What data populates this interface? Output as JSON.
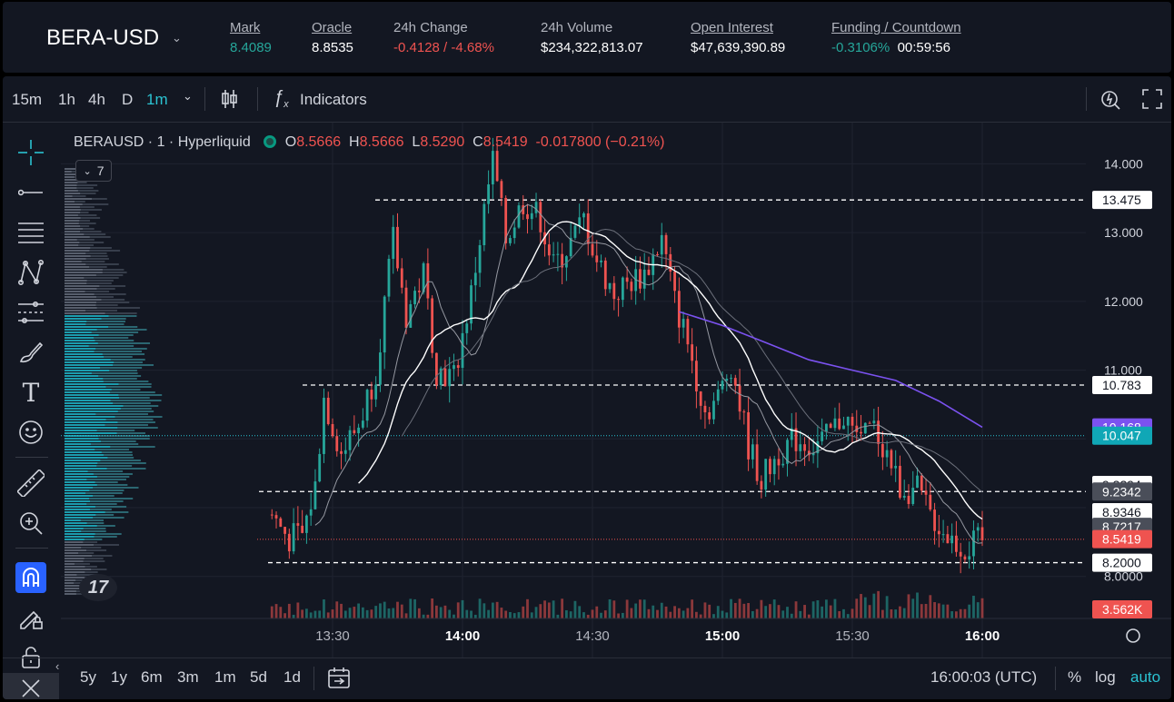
{
  "header": {
    "pair": "BERA-USD",
    "stats": [
      {
        "label": "Mark",
        "value": "8.4089",
        "underline": true,
        "tone": "green"
      },
      {
        "label": "Oracle",
        "value": "8.8535",
        "underline": true,
        "tone": "white"
      },
      {
        "label": "24h Change",
        "value": "-0.4128 / -4.68%",
        "underline": false,
        "tone": "red"
      },
      {
        "label": "24h Volume",
        "value": "$234,322,813.07",
        "underline": false,
        "tone": "white"
      },
      {
        "label": "Open Interest",
        "value": "$47,639,390.89",
        "underline": true,
        "tone": "white"
      },
      {
        "label": "Funding / Countdown",
        "value": "-0.3106%",
        "value2": "00:59:56",
        "underline": true,
        "tone": "green"
      }
    ]
  },
  "toolbar": {
    "intervals": [
      "15m",
      "1h",
      "4h",
      "D",
      "1m"
    ],
    "active_interval": "1m",
    "indicators_label": "Indicators"
  },
  "legend": {
    "symbol": "BERAUSD · 1 · Hyperliquid",
    "o_label": "O",
    "o": "8.5666",
    "h_label": "H",
    "h": "8.5666",
    "l_label": "L",
    "l": "8.5290",
    "c_label": "C",
    "c": "8.5419",
    "change": "-0.017800 (−0.21%)",
    "indicator_count": "7"
  },
  "bottom": {
    "ranges": [
      "5y",
      "1y",
      "6m",
      "3m",
      "1m",
      "5d",
      "1d"
    ],
    "clock": "16:00:03 (UTC)",
    "opts": [
      "%",
      "log",
      "auto"
    ]
  },
  "colors": {
    "up": "#26a69a",
    "down": "#ef5350",
    "bg": "#131722",
    "accent": "#2962ff",
    "ma_long": "#7b52f0"
  },
  "chart_data": {
    "type": "candlestick",
    "y_ticks": [
      "14.000",
      "13.000",
      "12.000",
      "11.000",
      "8.0000"
    ],
    "y_range": [
      7.6,
      14.6
    ],
    "x_ticks": [
      "13:30",
      "14:00",
      "14:30",
      "15:00",
      "15:30",
      "16:00"
    ],
    "time_range": [
      "13:16",
      "16:00"
    ],
    "price_labels": [
      {
        "value": "13.475",
        "price": 13.475,
        "style": "white"
      },
      {
        "value": "10.783",
        "price": 10.783,
        "style": "white"
      },
      {
        "value": "10.168",
        "price": 10.168,
        "style": "purple"
      },
      {
        "value": "10.047",
        "price": 10.047,
        "style": "cyan"
      },
      {
        "value": "9.3294",
        "price": 9.3294,
        "style": "white"
      },
      {
        "value": "9.2342",
        "price": 9.2342,
        "style": "gray"
      },
      {
        "value": "8.9346",
        "price": 8.9346,
        "style": "white"
      },
      {
        "value": "8.7217",
        "price": 8.7217,
        "style": "gray"
      },
      {
        "value": "8.5419",
        "price": 8.5419,
        "style": "red"
      },
      {
        "value": "8.2000",
        "price": 8.2,
        "style": "white"
      }
    ],
    "volume_label": "3.562K",
    "horizontal_levels": [
      13.475,
      10.783,
      9.2342,
      8.2
    ],
    "close_path": [
      [
        "13:16",
        8.9
      ],
      [
        "13:20",
        8.55
      ],
      [
        "13:23",
        8.6
      ],
      [
        "13:26",
        9.3
      ],
      [
        "13:28",
        10.6
      ],
      [
        "13:32",
        9.8
      ],
      [
        "13:36",
        10.2
      ],
      [
        "13:40",
        11.0
      ],
      [
        "13:44",
        12.9
      ],
      [
        "13:47",
        11.8
      ],
      [
        "13:51",
        12.4
      ],
      [
        "13:54",
        11.0
      ],
      [
        "13:58",
        10.9
      ],
      [
        "14:02",
        12.1
      ],
      [
        "14:05",
        13.3
      ],
      [
        "14:07",
        14.05
      ],
      [
        "14:10",
        12.9
      ],
      [
        "14:14",
        13.45
      ],
      [
        "14:18",
        13.2
      ],
      [
        "14:21",
        12.5
      ],
      [
        "14:25",
        12.85
      ],
      [
        "14:28",
        13.2
      ],
      [
        "14:31",
        12.6
      ],
      [
        "14:35",
        12.1
      ],
      [
        "14:39",
        12.3
      ],
      [
        "14:42",
        12.4
      ],
      [
        "14:46",
        12.9
      ],
      [
        "14:49",
        12.0
      ],
      [
        "14:52",
        11.4
      ],
      [
        "14:56",
        10.4
      ],
      [
        "14:59",
        10.6
      ],
      [
        "15:02",
        11.1
      ],
      [
        "15:06",
        9.9
      ],
      [
        "15:09",
        9.4
      ],
      [
        "15:13",
        9.8
      ],
      [
        "15:17",
        10.0
      ],
      [
        "15:21",
        9.9
      ],
      [
        "15:24",
        10.0
      ],
      [
        "15:28",
        10.35
      ],
      [
        "15:31",
        10.0
      ],
      [
        "15:35",
        10.15
      ],
      [
        "15:38",
        9.8
      ],
      [
        "15:41",
        9.3
      ],
      [
        "15:45",
        9.25
      ],
      [
        "15:48",
        8.9
      ],
      [
        "15:52",
        8.6
      ],
      [
        "15:56",
        8.4
      ],
      [
        "16:00",
        8.54
      ]
    ],
    "ma_long_path": [
      [
        "14:50",
        11.85
      ],
      [
        "15:00",
        11.65
      ],
      [
        "15:10",
        11.4
      ],
      [
        "15:20",
        11.15
      ],
      [
        "15:30",
        11.0
      ],
      [
        "15:40",
        10.85
      ],
      [
        "15:50",
        10.55
      ],
      [
        "16:00",
        10.17
      ]
    ]
  }
}
